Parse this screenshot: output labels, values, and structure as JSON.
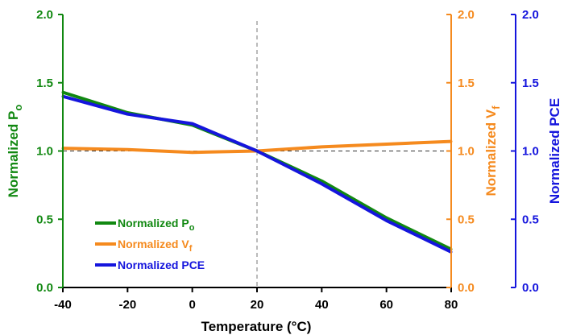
{
  "chart_data": {
    "type": "line",
    "xlabel": "Temperature (°C)",
    "xlim": [
      -40,
      80
    ],
    "xticks": [
      "-40",
      "-20",
      "0",
      "20",
      "40",
      "60",
      "80"
    ],
    "x": [
      -40,
      -20,
      0,
      20,
      40,
      60,
      80
    ],
    "axes": [
      {
        "id": "po",
        "label": "Normalized P",
        "label_sub": "o",
        "color": "#118811",
        "side": "left",
        "ylim": [
          0,
          2
        ],
        "ticks": [
          "0.0",
          "0.5",
          "1.0",
          "1.5",
          "2.0"
        ]
      },
      {
        "id": "vf",
        "label": "Normalized V",
        "label_sub": "f",
        "color": "#f58a1e",
        "side": "right",
        "ylim": [
          0,
          2
        ],
        "ticks": [
          "0.0",
          "0.5",
          "1.0",
          "1.5",
          "2.0"
        ]
      },
      {
        "id": "pce",
        "label": "Normalized PCE",
        "label_sub": "",
        "color": "#1515dd",
        "side": "right-outer",
        "ylim": [
          0,
          2
        ],
        "ticks": [
          "0.0",
          "0.5",
          "1.0",
          "1.5",
          "2.0"
        ]
      }
    ],
    "series": [
      {
        "name": "Normalized P",
        "name_sub": "o",
        "axis": "po",
        "color": "#118811",
        "values": [
          1.43,
          1.28,
          1.19,
          1.0,
          0.78,
          0.51,
          0.28
        ]
      },
      {
        "name": "Normalized V",
        "name_sub": "f",
        "axis": "vf",
        "color": "#f58a1e",
        "values": [
          1.02,
          1.01,
          0.99,
          1.0,
          1.03,
          1.05,
          1.07
        ]
      },
      {
        "name": "Normalized PCE",
        "name_sub": "",
        "axis": "pce",
        "color": "#1515dd",
        "values": [
          1.4,
          1.27,
          1.2,
          1.0,
          0.76,
          0.49,
          0.26
        ]
      }
    ],
    "reference_lines": {
      "hline_y": 1.0,
      "vline_x": 20
    },
    "legend_position": "bottom-left",
    "grid": false
  }
}
